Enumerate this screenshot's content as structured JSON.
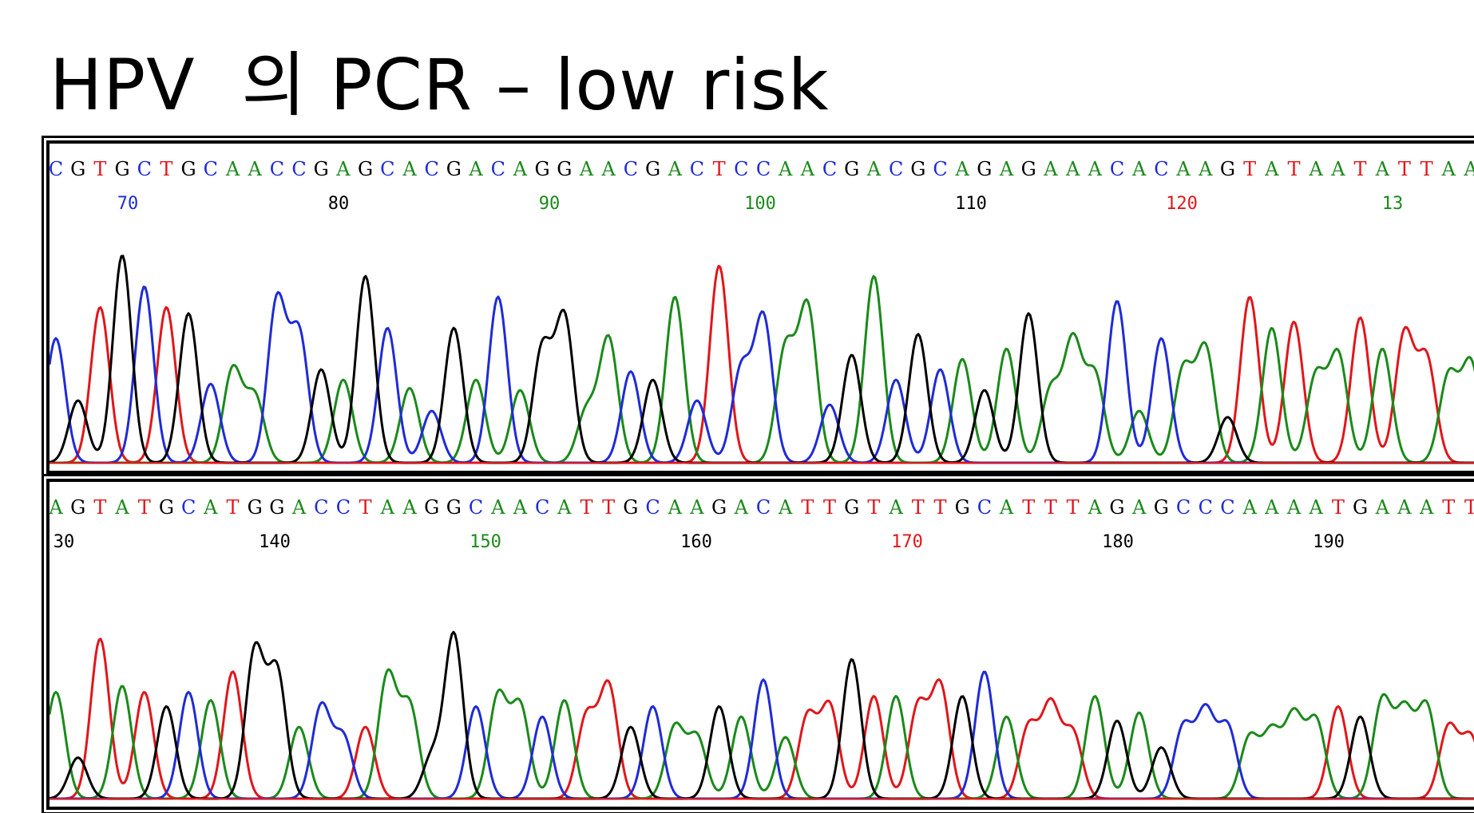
{
  "title": "HPV  의 PCR – low risk",
  "colors": {
    "A": "#1a8a1a",
    "C": "#1f2bd6",
    "G": "#000000",
    "T": "#e0161b"
  },
  "chart_data": [
    {
      "type": "line",
      "panel": "chromatogram-top",
      "bases": "CGTGCTGCAACCGAGCACGACAGGAACGACTCCAACGACGCAGAGAAACACAAGTATAATATTAA",
      "base_positions": [
        "70",
        "80",
        "90",
        "100",
        "110",
        "120",
        "13"
      ],
      "position_colors": [
        "C",
        "G",
        "A",
        "A",
        "G",
        "T",
        "A"
      ],
      "peak_start_index": 2,
      "peak_heights": [
        0.6,
        0.3,
        0.75,
        1.0,
        0.85,
        0.75,
        0.72,
        0.38,
        0.45,
        0.32,
        0.78,
        0.62,
        0.45,
        0.4,
        0.9,
        0.65,
        0.36,
        0.25,
        0.65,
        0.4,
        0.8,
        0.35,
        0.55,
        0.7,
        0.25,
        0.6,
        0.44,
        0.4,
        0.8,
        0.3,
        0.95,
        0.45,
        0.7,
        0.55,
        0.75,
        0.28,
        0.52,
        0.9,
        0.4,
        0.62,
        0.45,
        0.5,
        0.35,
        0.55,
        0.72,
        0.35,
        0.58,
        0.42,
        0.78,
        0.25,
        0.6,
        0.45,
        0.55,
        0.22,
        0.8,
        0.65,
        0.68,
        0.42,
        0.52,
        0.7,
        0.55,
        0.62,
        0.5,
        0.42,
        0.48
      ],
      "xlabel": "",
      "ylabel": ""
    },
    {
      "type": "line",
      "panel": "chromatogram-bottom",
      "bases": "AGTATGCATGGACCTAAGGCAACATTGCAAGACATTGTATTGCATTTAGAGCCCAAAATGAAATT",
      "base_positions": [
        "30",
        "140",
        "150",
        "160",
        "170",
        "180",
        "190"
      ],
      "position_colors": [
        "G",
        "G",
        "A",
        "G",
        "T",
        "G",
        "G"
      ],
      "peak_start_index": 0,
      "peak_heights": [
        0.52,
        0.2,
        0.78,
        0.55,
        0.52,
        0.45,
        0.52,
        0.48,
        0.62,
        0.72,
        0.62,
        0.35,
        0.45,
        0.3,
        0.35,
        0.6,
        0.45,
        0.2,
        0.8,
        0.45,
        0.5,
        0.45,
        0.4,
        0.48,
        0.4,
        0.55,
        0.35,
        0.45,
        0.35,
        0.3,
        0.45,
        0.4,
        0.58,
        0.3,
        0.4,
        0.45,
        0.68,
        0.5,
        0.5,
        0.45,
        0.55,
        0.5,
        0.62,
        0.4,
        0.35,
        0.45,
        0.32,
        0.5,
        0.38,
        0.42,
        0.25,
        0.35,
        0.42,
        0.35,
        0.3,
        0.32,
        0.4,
        0.38,
        0.45,
        0.4,
        0.48,
        0.42,
        0.45,
        0.35,
        0.3
      ],
      "xlabel": "",
      "ylabel": ""
    }
  ]
}
